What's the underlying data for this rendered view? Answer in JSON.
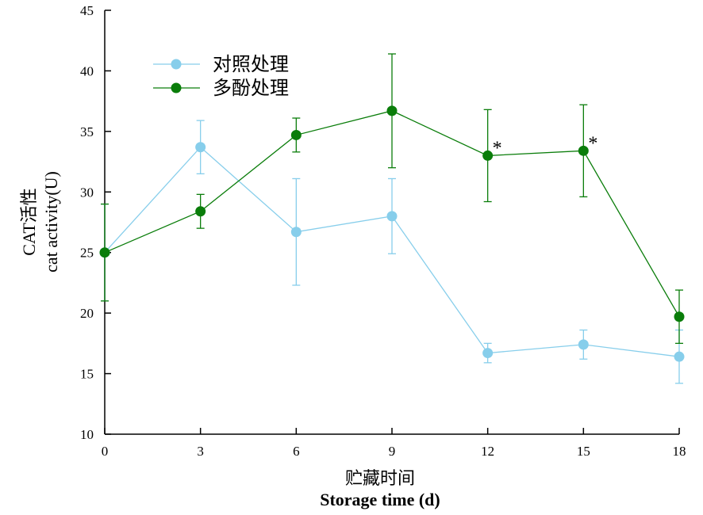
{
  "chart_data": {
    "type": "line",
    "title": "",
    "xlabel": [
      "贮藏时间",
      "Storage time (d)"
    ],
    "ylabel": [
      "CAT活性",
      "cat activity(U)"
    ],
    "x": [
      0,
      3,
      6,
      9,
      12,
      15,
      18
    ],
    "xlim": [
      0,
      18
    ],
    "ylim": [
      10,
      45
    ],
    "xticks": [
      "0",
      "3",
      "6",
      "9",
      "12",
      "15",
      "18"
    ],
    "yticks": [
      "10",
      "15",
      "20",
      "25",
      "30",
      "35",
      "40",
      "45"
    ],
    "grid": false,
    "legend_position": "top-left",
    "series": [
      {
        "name": "对照处理",
        "color": "#87CEEB",
        "marker": "circle",
        "values": [
          25.0,
          33.7,
          26.7,
          28.0,
          16.7,
          17.4,
          16.4
        ],
        "errors": [
          4.0,
          2.2,
          4.4,
          3.1,
          0.8,
          1.2,
          2.2
        ]
      },
      {
        "name": "多酚处理",
        "color": "#0A7D0A",
        "marker": "circle",
        "values": [
          25.0,
          28.4,
          34.7,
          36.7,
          33.0,
          33.4,
          19.7
        ],
        "errors": [
          4.0,
          1.4,
          1.4,
          4.7,
          3.8,
          3.8,
          2.2
        ]
      }
    ],
    "annotations": [
      {
        "text": "*",
        "x": 12,
        "series": "多酚处理"
      },
      {
        "text": "*",
        "x": 15,
        "series": "多酚处理"
      }
    ]
  }
}
